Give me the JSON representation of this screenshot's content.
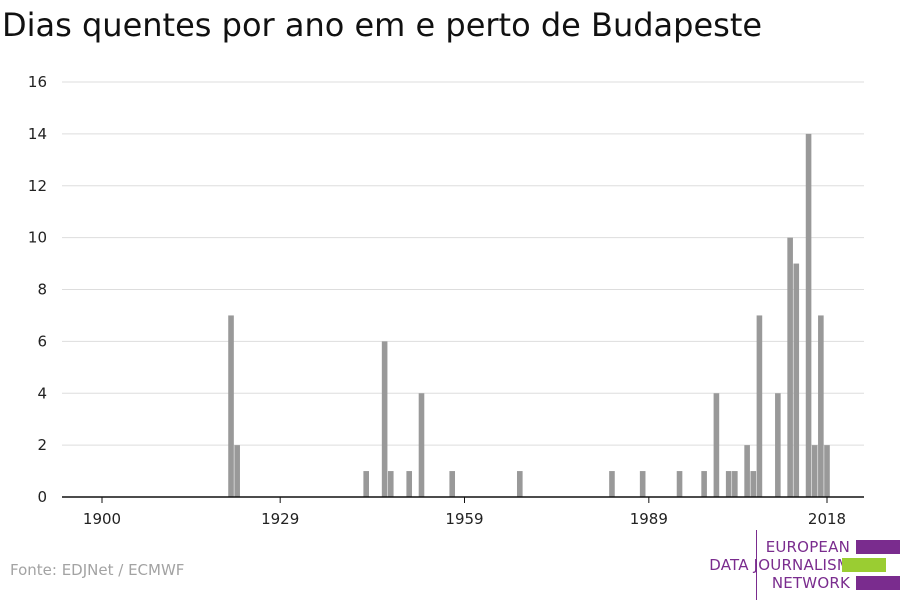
{
  "title": "Dias quentes por ano em e perto de Budapeste",
  "source": "Fonte: EDJNet / ECMWF",
  "logo": {
    "line1": "EUROPEAN",
    "line2": "DATA JOURNALISM",
    "line3": "NETWORK",
    "purple": "#7a2c8e",
    "green": "#9acd32"
  },
  "colors": {
    "bar": "#999999",
    "grid": "#dddddd",
    "axis": "#111111"
  },
  "chart_data": {
    "type": "bar",
    "title": "Dias quentes por ano em e perto de Budapeste",
    "xlabel": "",
    "ylabel": "",
    "xlim": [
      1900,
      2018
    ],
    "ylim": [
      0,
      16
    ],
    "yticks": [
      0,
      2,
      4,
      6,
      8,
      10,
      12,
      14,
      16
    ],
    "xticks": [
      1900,
      1929,
      1959,
      1989,
      2018
    ],
    "grid": true,
    "x": [
      1921,
      1922,
      1943,
      1946,
      1947,
      1950,
      1952,
      1957,
      1968,
      1983,
      1988,
      1994,
      1998,
      2000,
      2002,
      2003,
      2005,
      2006,
      2007,
      2010,
      2012,
      2013,
      2015,
      2016,
      2017,
      2018
    ],
    "values": [
      7,
      2,
      1,
      6,
      1,
      1,
      4,
      1,
      1,
      1,
      1,
      1,
      1,
      4,
      1,
      1,
      2,
      1,
      7,
      4,
      10,
      9,
      14,
      2,
      7,
      2
    ]
  }
}
